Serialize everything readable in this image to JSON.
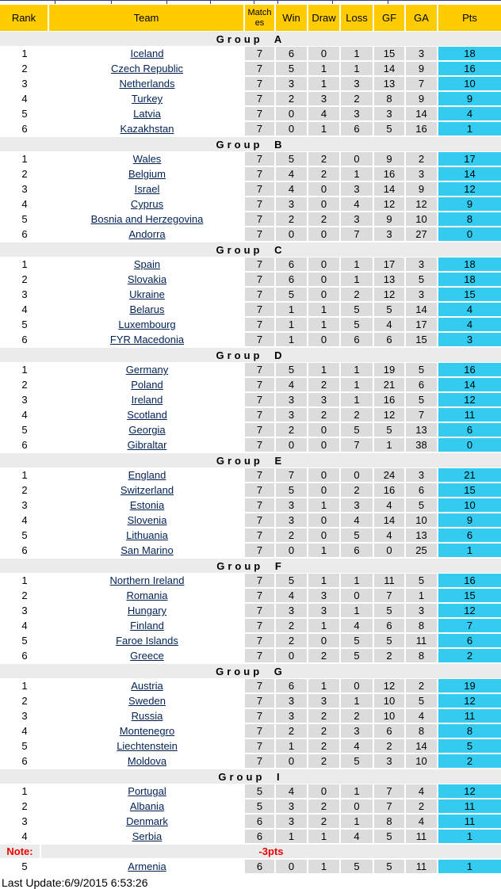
{
  "header": {
    "columns": [
      "Rank",
      "Team",
      "Matches",
      "Win",
      "Draw",
      "Loss",
      "GF",
      "GA",
      "Pts"
    ]
  },
  "groups": [
    {
      "label": "Group A",
      "rows": [
        [
          "1",
          "Iceland",
          "7",
          "6",
          "0",
          "1",
          "15",
          "3",
          "18"
        ],
        [
          "2",
          "Czech Republic",
          "7",
          "5",
          "1",
          "1",
          "14",
          "9",
          "16"
        ],
        [
          "3",
          "Netherlands",
          "7",
          "3",
          "1",
          "3",
          "13",
          "7",
          "10"
        ],
        [
          "4",
          "Turkey",
          "7",
          "2",
          "3",
          "2",
          "8",
          "9",
          "9"
        ],
        [
          "5",
          "Latvia",
          "7",
          "0",
          "4",
          "3",
          "3",
          "14",
          "4"
        ],
        [
          "6",
          "Kazakhstan",
          "7",
          "0",
          "1",
          "6",
          "5",
          "16",
          "1"
        ]
      ]
    },
    {
      "label": "Group B",
      "rows": [
        [
          "1",
          "Wales",
          "7",
          "5",
          "2",
          "0",
          "9",
          "2",
          "17"
        ],
        [
          "2",
          "Belgium",
          "7",
          "4",
          "2",
          "1",
          "16",
          "3",
          "14"
        ],
        [
          "3",
          "Israel",
          "7",
          "4",
          "0",
          "3",
          "14",
          "9",
          "12"
        ],
        [
          "4",
          "Cyprus",
          "7",
          "3",
          "0",
          "4",
          "12",
          "12",
          "9"
        ],
        [
          "5",
          "Bosnia and Herzegovina",
          "7",
          "2",
          "2",
          "3",
          "9",
          "10",
          "8"
        ],
        [
          "6",
          "Andorra",
          "7",
          "0",
          "0",
          "7",
          "3",
          "27",
          "0"
        ]
      ]
    },
    {
      "label": "Group C",
      "rows": [
        [
          "1",
          "Spain",
          "7",
          "6",
          "0",
          "1",
          "17",
          "3",
          "18"
        ],
        [
          "2",
          "Slovakia",
          "7",
          "6",
          "0",
          "1",
          "13",
          "5",
          "18"
        ],
        [
          "3",
          "Ukraine",
          "7",
          "5",
          "0",
          "2",
          "12",
          "3",
          "15"
        ],
        [
          "4",
          "Belarus",
          "7",
          "1",
          "1",
          "5",
          "5",
          "14",
          "4"
        ],
        [
          "5",
          "Luxembourg",
          "7",
          "1",
          "1",
          "5",
          "4",
          "17",
          "4"
        ],
        [
          "6",
          "FYR Macedonia",
          "7",
          "1",
          "0",
          "6",
          "6",
          "15",
          "3"
        ]
      ]
    },
    {
      "label": "Group D",
      "rows": [
        [
          "1",
          "Germany",
          "7",
          "5",
          "1",
          "1",
          "19",
          "5",
          "16"
        ],
        [
          "2",
          "Poland",
          "7",
          "4",
          "2",
          "1",
          "21",
          "6",
          "14"
        ],
        [
          "3",
          "Ireland",
          "7",
          "3",
          "3",
          "1",
          "16",
          "5",
          "12"
        ],
        [
          "4",
          "Scotland",
          "7",
          "3",
          "2",
          "2",
          "12",
          "7",
          "11"
        ],
        [
          "5",
          "Georgia",
          "7",
          "2",
          "0",
          "5",
          "5",
          "13",
          "6"
        ],
        [
          "6",
          "Gibraltar",
          "7",
          "0",
          "0",
          "7",
          "1",
          "38",
          "0"
        ]
      ]
    },
    {
      "label": "Group E",
      "rows": [
        [
          "1",
          "England",
          "7",
          "7",
          "0",
          "0",
          "24",
          "3",
          "21"
        ],
        [
          "2",
          "Switzerland",
          "7",
          "5",
          "0",
          "2",
          "16",
          "6",
          "15"
        ],
        [
          "3",
          "Estonia",
          "7",
          "3",
          "1",
          "3",
          "4",
          "5",
          "10"
        ],
        [
          "4",
          "Slovenia",
          "7",
          "3",
          "0",
          "4",
          "14",
          "10",
          "9"
        ],
        [
          "5",
          "Lithuania",
          "7",
          "2",
          "0",
          "5",
          "4",
          "13",
          "6"
        ],
        [
          "6",
          "San Marino",
          "7",
          "0",
          "1",
          "6",
          "0",
          "25",
          "1"
        ]
      ]
    },
    {
      "label": "Group F",
      "rows": [
        [
          "1",
          "Northern Ireland",
          "7",
          "5",
          "1",
          "1",
          "11",
          "5",
          "16"
        ],
        [
          "2",
          "Romania",
          "7",
          "4",
          "3",
          "0",
          "7",
          "1",
          "15"
        ],
        [
          "3",
          "Hungary",
          "7",
          "3",
          "3",
          "1",
          "5",
          "3",
          "12"
        ],
        [
          "4",
          "Finland",
          "7",
          "2",
          "1",
          "4",
          "6",
          "8",
          "7"
        ],
        [
          "5",
          "Faroe Islands",
          "7",
          "2",
          "0",
          "5",
          "5",
          "11",
          "6"
        ],
        [
          "6",
          "Greece",
          "7",
          "0",
          "2",
          "5",
          "2",
          "8",
          "2"
        ]
      ]
    },
    {
      "label": "Group G",
      "rows": [
        [
          "1",
          "Austria",
          "7",
          "6",
          "1",
          "0",
          "12",
          "2",
          "19"
        ],
        [
          "2",
          "Sweden",
          "7",
          "3",
          "3",
          "1",
          "10",
          "5",
          "12"
        ],
        [
          "3",
          "Russia",
          "7",
          "3",
          "2",
          "2",
          "10",
          "4",
          "11"
        ],
        [
          "4",
          "Montenegro",
          "7",
          "2",
          "2",
          "3",
          "6",
          "8",
          "8"
        ],
        [
          "5",
          "Liechtenstein",
          "7",
          "1",
          "2",
          "4",
          "2",
          "14",
          "5"
        ],
        [
          "6",
          "Moldova",
          "7",
          "0",
          "2",
          "5",
          "3",
          "10",
          "2"
        ]
      ]
    },
    {
      "label": "Group I",
      "rows": [
        [
          "1",
          "Portugal",
          "5",
          "4",
          "0",
          "1",
          "7",
          "4",
          "12"
        ],
        [
          "2",
          "Albania",
          "5",
          "3",
          "2",
          "0",
          "7",
          "2",
          "11"
        ],
        [
          "3",
          "Denmark",
          "6",
          "3",
          "2",
          "1",
          "8",
          "4",
          "11"
        ],
        [
          "4",
          "Serbia",
          "6",
          "1",
          "1",
          "4",
          "5",
          "11",
          "1"
        ],
        [
          "5",
          "Armenia",
          "6",
          "0",
          "1",
          "5",
          "5",
          "11",
          "1"
        ]
      ],
      "note": {
        "label": "Note:",
        "text": "-3pts",
        "insert_after": 4
      }
    }
  ],
  "footer": {
    "last_update": "Last Update:6/9/2015 6:53:26"
  },
  "colors": {
    "header_bg": "#FFCC00",
    "pts_bg": "#33CCF0",
    "cell_bg": "#DCDCDC",
    "band_bg": "#EBEBEB",
    "note_red": "#EE0000",
    "link": "#002255",
    "navy_border": "#333380"
  }
}
